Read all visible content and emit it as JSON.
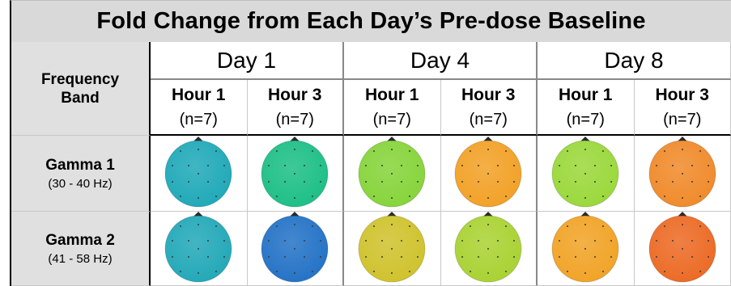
{
  "title": "Fold Change from Each Day’s Pre-dose Baseline",
  "column_header": "Frequency Band",
  "column_header_lines": [
    "Frequency",
    "Band"
  ],
  "days": [
    {
      "label": "Day 1",
      "hours": [
        {
          "label": "Hour 1",
          "n": "(n=7)"
        },
        {
          "label": "Hour 3",
          "n": "(n=7)"
        }
      ]
    },
    {
      "label": "Day 4",
      "hours": [
        {
          "label": "Hour 1",
          "n": "(n=7)"
        },
        {
          "label": "Hour 3",
          "n": "(n=7)"
        }
      ]
    },
    {
      "label": "Day 8",
      "hours": [
        {
          "label": "Hour 1",
          "n": "(n=7)"
        },
        {
          "label": "Hour 3",
          "n": "(n=7)"
        }
      ]
    }
  ],
  "bands": [
    {
      "name": "Gamma 1",
      "range": "(30 - 40 Hz)"
    },
    {
      "name": "Gamma 2",
      "range": "(41 - 58 Hz)"
    }
  ],
  "topomaps": [
    [
      "#1fa9b8",
      "#1cbf86",
      "#86d43a",
      "#f2a126",
      "#9ad83a",
      "#f08a2a"
    ],
    [
      "#22a8b8",
      "#2372c6",
      "#cfc22c",
      "#a9d232",
      "#f1a326",
      "#ec6a24"
    ]
  ],
  "head_marker_color": "#2b2b2b",
  "electrode_color": "#3a3a3a"
}
